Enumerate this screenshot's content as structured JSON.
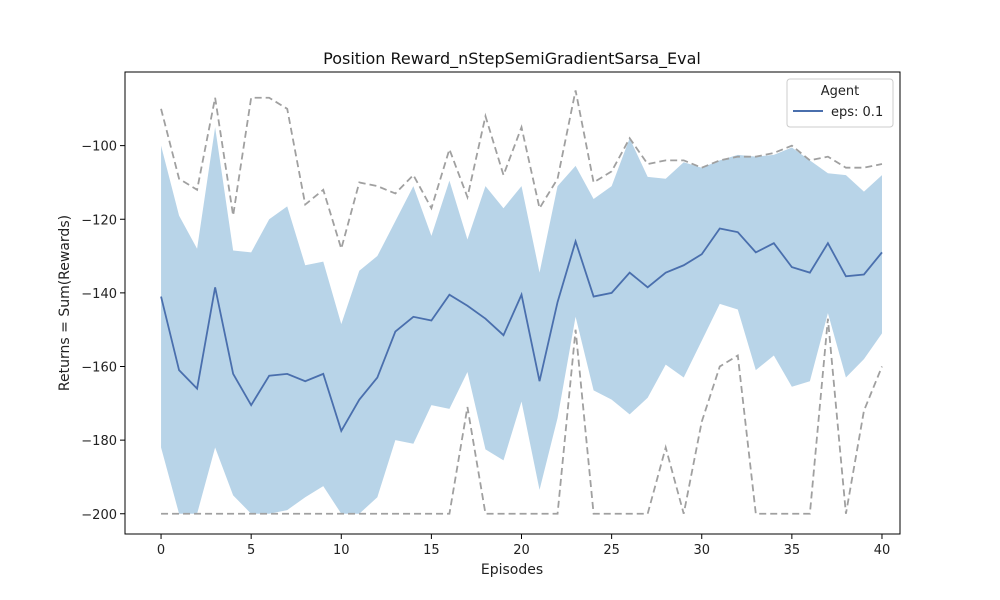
{
  "chart_data": {
    "type": "line",
    "title": "Position Reward_nStepSemiGradientSarsa_Eval",
    "xlabel": "Episodes",
    "ylabel": "Returns = Sum(Rewards)",
    "xlim": [
      -2,
      41
    ],
    "ylim": [
      -205.5,
      -80
    ],
    "xticks": [
      0,
      5,
      10,
      15,
      20,
      25,
      30,
      35,
      40
    ],
    "yticks": [
      -200,
      -180,
      -160,
      -140,
      -120,
      -100
    ],
    "xtick_labels": [
      "0",
      "5",
      "10",
      "15",
      "20",
      "25",
      "30",
      "35",
      "40"
    ],
    "ytick_labels": [
      "−200",
      "−180",
      "−160",
      "−140",
      "−120",
      "−100"
    ],
    "grid": false,
    "legend": {
      "title": "Agent",
      "placement": "top-right",
      "entries": [
        "eps: 0.1"
      ]
    },
    "x": [
      0,
      1,
      2,
      3,
      4,
      5,
      6,
      7,
      8,
      9,
      10,
      11,
      12,
      13,
      14,
      15,
      16,
      17,
      18,
      19,
      20,
      21,
      22,
      23,
      24,
      25,
      26,
      27,
      28,
      29,
      30,
      31,
      32,
      33,
      34,
      35,
      36,
      37,
      38,
      39,
      40
    ],
    "series": [
      {
        "name": "eps: 0.1",
        "role": "mean",
        "color": "#4a6fad",
        "values": [
          -141,
          -161,
          -166,
          -138.5,
          -162,
          -170.5,
          -162.5,
          -162,
          -164,
          -162,
          -177.5,
          -169,
          -163,
          -150.5,
          -146.5,
          -147.5,
          -140.5,
          -143.5,
          -147,
          -151.5,
          -140.5,
          -164,
          -142.5,
          -126,
          -141,
          -140,
          -134.5,
          -138.5,
          -134.5,
          -132.5,
          -129.5,
          -122.5,
          -123.5,
          -129,
          -126.5,
          -133,
          -134.5,
          -126.5,
          -135.5,
          -135,
          -129
        ]
      },
      {
        "role": "band",
        "color": "#b8d4e8",
        "upper": [
          -100,
          -119,
          -128,
          -95,
          -128.5,
          -129,
          -120,
          -116.5,
          -132.5,
          -131.5,
          -148.5,
          -134,
          -130,
          -120.5,
          -111,
          -124.5,
          -109.5,
          -125.5,
          -111,
          -117,
          -111,
          -134.5,
          -111,
          -105.5,
          -114.5,
          -111,
          -98,
          -108.5,
          -109,
          -104.5,
          -106,
          -104,
          -102.5,
          -103,
          -102.5,
          -100.5,
          -104,
          -107.5,
          -108,
          -112.5,
          -108
        ],
        "lower": [
          -182,
          -200,
          -200,
          -182,
          -195,
          -200,
          -200,
          -199,
          -195.5,
          -192.5,
          -200,
          -200,
          -195.5,
          -180,
          -181,
          -170.5,
          -171.5,
          -161.5,
          -182.5,
          -185.5,
          -169.5,
          -193.5,
          -174,
          -146.5,
          -166.5,
          -169,
          -173,
          -168.5,
          -159.5,
          -163,
          -153,
          -143,
          -144.5,
          -161,
          -157,
          -165.5,
          -164,
          -145.5,
          -163,
          -158,
          -151
        ]
      },
      {
        "role": "max",
        "color": "#a0a0a0",
        "values": [
          -90,
          -109,
          -112,
          -87,
          -119,
          -87,
          -87,
          -90,
          -116,
          -112,
          -128,
          -110,
          -111,
          -113,
          -108,
          -117,
          -101,
          -114,
          -92,
          -108,
          -95,
          -117,
          -109,
          -85,
          -110,
          -107,
          -98,
          -105,
          -104,
          -104,
          -106,
          -104,
          -103,
          -103,
          -102,
          -100,
          -104,
          -103,
          -106,
          -106,
          -105
        ]
      },
      {
        "role": "min",
        "color": "#a0a0a0",
        "values": [
          -200,
          -200,
          -200,
          -200,
          -200,
          -200,
          -200,
          -200,
          -200,
          -200,
          -200,
          -200,
          -200,
          -200,
          -200,
          -200,
          -200,
          -171,
          -200,
          -200,
          -200,
          -200,
          -200,
          -150,
          -200,
          -200,
          -200,
          -200,
          -182,
          -200,
          -175,
          -160,
          -157,
          -200,
          -200,
          -200,
          -200,
          -147,
          -200,
          -172,
          -160
        ]
      }
    ]
  }
}
